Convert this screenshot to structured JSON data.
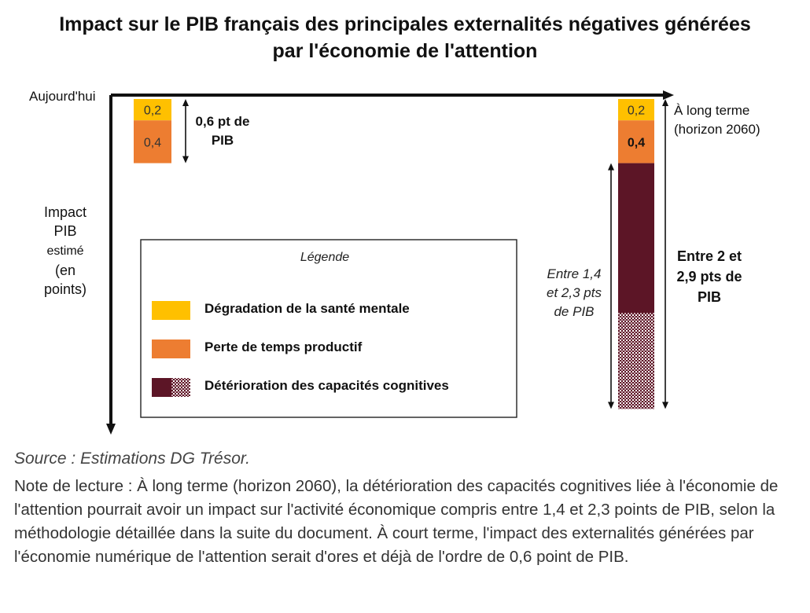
{
  "chart_data": {
    "type": "bar",
    "title": "Impact sur le PIB français des principales externalités négatives générées par l'économie de l'attention",
    "title_lines": [
      "Impact sur le PIB français des principales externalités négatives générées",
      "par l'économie de l'attention"
    ],
    "x_start_label": "Aujourd'hui",
    "x_end_label_lines": [
      "À long terme",
      "(horizon 2060)"
    ],
    "ylabel_lines": [
      "Impact",
      "PIB",
      "estimé",
      "(en",
      "points)"
    ],
    "categories": [
      "Aujourd'hui",
      "À long terme (horizon 2060)"
    ],
    "series": [
      {
        "name": "Dégradation de la santé mentale",
        "color": "#FFC000",
        "values": [
          0.2,
          0.2
        ]
      },
      {
        "name": "Perte de temps productif",
        "color": "#ED7D31",
        "values": [
          0.4,
          0.4
        ]
      },
      {
        "name": "Détérioration des capacités cognitives",
        "color": "#5C1526",
        "values": [
          0,
          1.4
        ],
        "range_high": [
          0,
          2.3
        ]
      }
    ],
    "value_labels": {
      "mental": "0,2",
      "productive": "0,4"
    },
    "annotations": {
      "short_term_total_lines": [
        "0,6 pt de",
        "PIB"
      ],
      "long_term_total_lines": [
        "Entre 2 et",
        "2,9 pts de",
        "PIB"
      ],
      "cognitive_range_lines": [
        "Entre 1,4",
        "et 2,3 pts",
        "de PIB"
      ]
    },
    "legend": {
      "title": "Légende",
      "placement": "center",
      "items": [
        {
          "label": "Dégradation de la santé mentale",
          "color": "#FFC000"
        },
        {
          "label": "Perte de temps productif",
          "color": "#ED7D31"
        },
        {
          "label": "Détérioration des capacités cognitives",
          "color": "#5C1526",
          "pattern": "dotted"
        }
      ]
    },
    "ylim": [
      0,
      3.0
    ],
    "y_direction": "down"
  },
  "source": "Source : Estimations DG Trésor.",
  "note": "Note de lecture : À long terme (horizon 2060), la détérioration des capacités cognitives liée à l'économie de l'attention pourrait avoir un impact sur l'activité économique compris entre 1,4 et 2,3 points de PIB, selon la méthodologie détaillée dans la suite du document. À court terme, l'impact des externalités générées par l'économie numérique de l'attention serait d'ores et déjà de l'ordre de 0,6 point de PIB."
}
